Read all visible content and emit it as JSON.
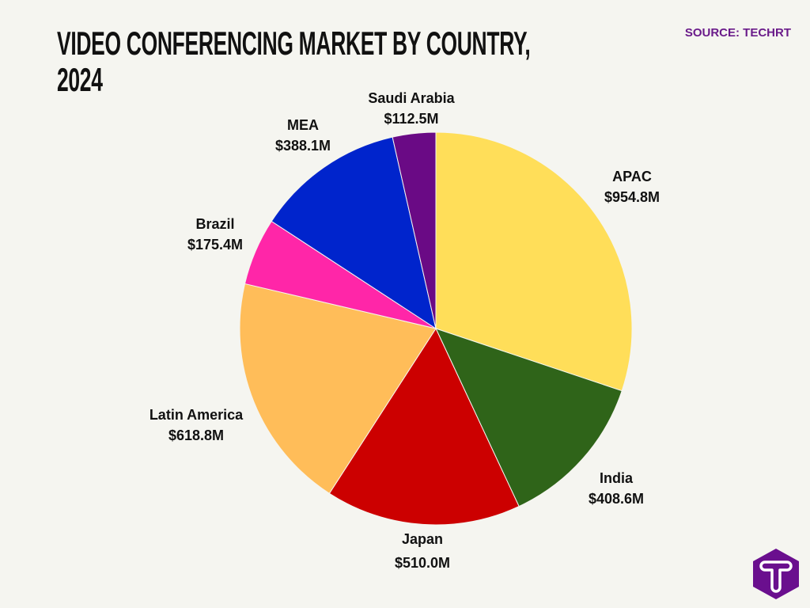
{
  "title": {
    "line1": "VIDEO CONFERENCING MARKET BY COUNTRY,",
    "line2": "2024"
  },
  "source": "SOURCE: TECHRT",
  "logo": {
    "letter": "T",
    "color": "#6a0f8e"
  },
  "chart_data": {
    "type": "pie",
    "title": "VIDEO CONFERENCING MARKET BY COUNTRY, 2024",
    "start": "top",
    "direction": "clockwise",
    "slices": [
      {
        "label": "APAC",
        "value": 954.8,
        "display": "$954.8M",
        "color": "#ffde59"
      },
      {
        "label": "India",
        "value": 408.6,
        "display": "$408.6M",
        "color": "#2f6419"
      },
      {
        "label": "Japan",
        "value": 510.0,
        "display": "$510.0M",
        "color": "#cc0000"
      },
      {
        "label": "Latin America",
        "value": 618.8,
        "display": "$618.8M",
        "color": "#ffbd59"
      },
      {
        "label": "Brazil",
        "value": 175.4,
        "display": "$175.4M",
        "color": "#ff26a8"
      },
      {
        "label": "MEA",
        "value": 388.1,
        "display": "$388.1M",
        "color": "#0024cc"
      },
      {
        "label": "Saudi Arabia",
        "value": 112.5,
        "display": "$112.5M",
        "color": "#6a0a85"
      }
    ]
  }
}
